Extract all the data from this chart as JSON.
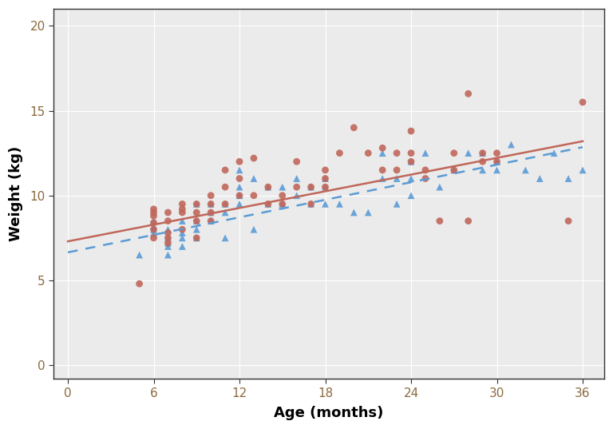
{
  "xlabel": "Age (months)",
  "ylabel": "Weight (kg)",
  "xlim": [
    -1.0,
    37.5
  ],
  "ylim": [
    -0.8,
    21.0
  ],
  "xticks": [
    0,
    6,
    12,
    18,
    24,
    30,
    36
  ],
  "yticks": [
    0,
    5,
    10,
    15,
    20
  ],
  "background_color": "#ffffff",
  "panel_background": "#ebebeb",
  "grid_color": "#ffffff",
  "male_color": "#c0675a",
  "female_color": "#5b9bd5",
  "male_marker": "o",
  "female_marker": "^",
  "male_line_style": "-",
  "female_line_style": "--",
  "male_fit_x": [
    0,
    36
  ],
  "male_fit_y": [
    7.3,
    13.2
  ],
  "female_fit_x": [
    0,
    36
  ],
  "female_fit_y": [
    6.65,
    12.85
  ],
  "male_points_age": [
    5,
    6,
    6,
    6,
    6,
    6,
    6,
    7,
    7,
    7,
    7,
    7,
    8,
    8,
    8,
    8,
    9,
    9,
    9,
    9,
    10,
    10,
    10,
    10,
    11,
    11,
    11,
    12,
    12,
    12,
    13,
    13,
    14,
    14,
    15,
    15,
    16,
    16,
    17,
    17,
    18,
    18,
    18,
    19,
    20,
    21,
    22,
    22,
    23,
    23,
    24,
    24,
    24,
    25,
    25,
    26,
    27,
    27,
    28,
    28,
    29,
    29,
    30,
    30,
    35,
    36
  ],
  "male_points_weight": [
    4.8,
    8.4,
    8.8,
    9.0,
    9.2,
    8.0,
    7.5,
    7.5,
    8.5,
    9.0,
    7.2,
    7.8,
    8.0,
    9.5,
    9.2,
    9.0,
    9.5,
    9.0,
    8.5,
    7.5,
    10.0,
    9.5,
    9.0,
    8.5,
    10.5,
    11.5,
    9.5,
    12.0,
    11.0,
    10.0,
    12.2,
    10.0,
    9.5,
    10.5,
    9.5,
    10.0,
    12.0,
    10.5,
    10.5,
    9.5,
    11.0,
    11.5,
    10.5,
    12.5,
    14.0,
    12.5,
    12.8,
    11.5,
    12.5,
    11.5,
    13.8,
    12.5,
    12.0,
    11.5,
    11.0,
    8.5,
    12.5,
    11.5,
    16.0,
    8.5,
    12.5,
    12.0,
    12.0,
    12.5,
    8.5,
    15.5
  ],
  "female_points_age": [
    5,
    6,
    6,
    6,
    6,
    7,
    7,
    7,
    7,
    7,
    8,
    8,
    8,
    8,
    9,
    9,
    9,
    9,
    10,
    10,
    10,
    11,
    11,
    11,
    12,
    12,
    12,
    12,
    13,
    13,
    14,
    14,
    15,
    15,
    16,
    16,
    17,
    17,
    18,
    18,
    18,
    19,
    20,
    21,
    22,
    22,
    23,
    23,
    24,
    24,
    24,
    25,
    26,
    27,
    28,
    29,
    29,
    30,
    30,
    30,
    31,
    32,
    33,
    34,
    35,
    36
  ],
  "female_points_weight": [
    6.5,
    8.5,
    8.2,
    8.0,
    7.8,
    7.2,
    7.5,
    7.0,
    8.0,
    6.5,
    8.5,
    7.8,
    7.5,
    7.0,
    8.5,
    9.5,
    8.0,
    7.5,
    9.5,
    9.0,
    8.5,
    9.5,
    9.0,
    7.5,
    11.5,
    10.5,
    10.0,
    9.5,
    11.0,
    8.0,
    10.5,
    9.5,
    10.5,
    9.5,
    11.0,
    10.0,
    10.5,
    9.5,
    11.0,
    10.5,
    9.5,
    9.5,
    9.0,
    9.0,
    12.5,
    11.0,
    11.0,
    9.5,
    12.0,
    11.0,
    10.0,
    12.5,
    10.5,
    11.5,
    12.5,
    12.5,
    11.5,
    12.0,
    12.0,
    11.5,
    13.0,
    11.5,
    11.0,
    12.5,
    11.0,
    11.5
  ],
  "marker_size": 40,
  "line_width": 1.8,
  "axis_label_fontsize": 13,
  "tick_fontsize": 11,
  "spine_color": "#333333",
  "tick_color": "#333333"
}
